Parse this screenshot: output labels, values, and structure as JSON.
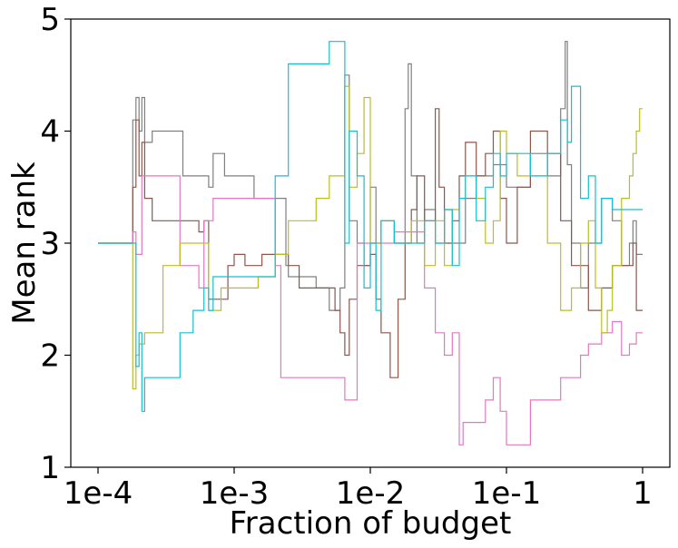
{
  "chart_data": {
    "type": "line",
    "title": "",
    "xlabel": "Fraction of budget",
    "ylabel": "Mean rank",
    "xscale": "log",
    "xlim": [
      0.0001,
      1
    ],
    "ylim": [
      1,
      5
    ],
    "xticks": [
      0.0001,
      0.001,
      0.01,
      0.1,
      1
    ],
    "xtick_labels": [
      "1e-4",
      "1e-3",
      "1e-2",
      "1e-1",
      "1"
    ],
    "yticks": [
      1,
      2,
      3,
      4,
      5
    ],
    "ytick_labels": [
      "1",
      "2",
      "3",
      "4",
      "5"
    ],
    "grid": false,
    "legend": "none",
    "series": [
      {
        "name": "gray",
        "color": "#7f7f7f",
        "points": [
          [
            0.0001,
            3.0
          ],
          [
            0.00017,
            3.0
          ],
          [
            0.00018,
            4.1
          ],
          [
            0.00019,
            4.3
          ],
          [
            0.0002,
            4.0
          ],
          [
            0.00021,
            4.3
          ],
          [
            0.00022,
            3.9
          ],
          [
            0.00025,
            4.0
          ],
          [
            0.0004,
            4.0
          ],
          [
            0.00042,
            3.6
          ],
          [
            0.0006,
            3.6
          ],
          [
            0.00065,
            3.5
          ],
          [
            0.0007,
            3.8
          ],
          [
            0.0008,
            3.8
          ],
          [
            0.00085,
            3.6
          ],
          [
            0.0012,
            3.6
          ],
          [
            0.0014,
            3.4
          ],
          [
            0.002,
            3.4
          ],
          [
            0.0024,
            2.8
          ],
          [
            0.0025,
            2.7
          ],
          [
            0.004,
            2.6
          ],
          [
            0.005,
            2.4
          ],
          [
            0.0055,
            2.4
          ],
          [
            0.006,
            2.6
          ],
          [
            0.0065,
            4.5
          ],
          [
            0.007,
            3.2
          ],
          [
            0.008,
            3.0
          ],
          [
            0.009,
            2.8
          ],
          [
            0.01,
            3.5
          ],
          [
            0.011,
            3.0
          ],
          [
            0.012,
            3.2
          ],
          [
            0.015,
            3.0
          ],
          [
            0.018,
            4.2
          ],
          [
            0.019,
            4.6
          ],
          [
            0.02,
            3.6
          ],
          [
            0.022,
            3.0
          ],
          [
            0.025,
            3.3
          ],
          [
            0.03,
            3.0
          ],
          [
            0.035,
            3.3
          ],
          [
            0.04,
            3.0
          ],
          [
            0.05,
            3.4
          ],
          [
            0.06,
            3.6
          ],
          [
            0.08,
            3.7
          ],
          [
            0.1,
            3.5
          ],
          [
            0.15,
            3.8
          ],
          [
            0.2,
            3.6
          ],
          [
            0.25,
            4.2
          ],
          [
            0.27,
            4.8
          ],
          [
            0.28,
            3.7
          ],
          [
            0.3,
            3.0
          ],
          [
            0.35,
            2.6
          ],
          [
            0.4,
            3.0
          ],
          [
            0.5,
            3.4
          ],
          [
            0.6,
            3.2
          ],
          [
            0.7,
            2.8
          ],
          [
            0.8,
            3.0
          ],
          [
            0.85,
            3.2
          ],
          [
            0.9,
            2.9
          ],
          [
            1.0,
            2.9
          ]
        ]
      },
      {
        "name": "brown",
        "color": "#8c564b",
        "points": [
          [
            0.0001,
            3.0
          ],
          [
            0.00017,
            3.0
          ],
          [
            0.00018,
            3.5
          ],
          [
            0.00019,
            4.1
          ],
          [
            0.0002,
            3.6
          ],
          [
            0.00021,
            3.9
          ],
          [
            0.00022,
            3.4
          ],
          [
            0.00025,
            3.2
          ],
          [
            0.0005,
            3.2
          ],
          [
            0.00055,
            3.1
          ],
          [
            0.0006,
            3.2
          ],
          [
            0.00065,
            2.5
          ],
          [
            0.0008,
            2.5
          ],
          [
            0.0009,
            2.8
          ],
          [
            0.001,
            2.9
          ],
          [
            0.0012,
            2.8
          ],
          [
            0.0015,
            2.8
          ],
          [
            0.0016,
            2.9
          ],
          [
            0.002,
            2.9
          ],
          [
            0.0025,
            2.8
          ],
          [
            0.003,
            2.6
          ],
          [
            0.005,
            2.6
          ],
          [
            0.0055,
            2.4
          ],
          [
            0.006,
            2.2
          ],
          [
            0.0065,
            2.0
          ],
          [
            0.007,
            2.5
          ],
          [
            0.008,
            2.8
          ],
          [
            0.01,
            2.9
          ],
          [
            0.011,
            2.5
          ],
          [
            0.012,
            2.2
          ],
          [
            0.014,
            1.8
          ],
          [
            0.016,
            2.5
          ],
          [
            0.018,
            3.0
          ],
          [
            0.02,
            3.3
          ],
          [
            0.022,
            3.6
          ],
          [
            0.025,
            3.2
          ],
          [
            0.03,
            4.2
          ],
          [
            0.032,
            3.5
          ],
          [
            0.035,
            3.0
          ],
          [
            0.04,
            3.2
          ],
          [
            0.045,
            3.6
          ],
          [
            0.05,
            3.9
          ],
          [
            0.06,
            3.6
          ],
          [
            0.07,
            3.8
          ],
          [
            0.08,
            4.0
          ],
          [
            0.09,
            3.4
          ],
          [
            0.1,
            3.0
          ],
          [
            0.12,
            3.5
          ],
          [
            0.15,
            4.0
          ],
          [
            0.2,
            3.8
          ],
          [
            0.25,
            3.2
          ],
          [
            0.3,
            2.8
          ],
          [
            0.4,
            2.4
          ],
          [
            0.5,
            2.6
          ],
          [
            0.6,
            2.8
          ],
          [
            0.8,
            2.8
          ],
          [
            0.85,
            3.0
          ],
          [
            0.9,
            2.4
          ],
          [
            1.0,
            2.4
          ]
        ]
      },
      {
        "name": "pink",
        "color": "#e377c2",
        "points": [
          [
            0.00017,
            3.0
          ],
          [
            0.00018,
            3.1
          ],
          [
            0.00019,
            2.9
          ],
          [
            0.00021,
            3.6
          ],
          [
            0.00035,
            3.6
          ],
          [
            0.0004,
            2.8
          ],
          [
            0.0005,
            2.8
          ],
          [
            0.00055,
            2.6
          ],
          [
            0.0006,
            3.2
          ],
          [
            0.0007,
            3.4
          ],
          [
            0.001,
            3.4
          ],
          [
            0.0012,
            3.4
          ],
          [
            0.0015,
            3.4
          ],
          [
            0.002,
            2.8
          ],
          [
            0.0022,
            1.8
          ],
          [
            0.004,
            1.8
          ],
          [
            0.006,
            1.8
          ],
          [
            0.0065,
            1.6
          ],
          [
            0.0075,
            1.6
          ],
          [
            0.008,
            3.0
          ],
          [
            0.01,
            3.0
          ],
          [
            0.015,
            3.1
          ],
          [
            0.02,
            3.1
          ],
          [
            0.025,
            2.6
          ],
          [
            0.03,
            2.2
          ],
          [
            0.035,
            2.0
          ],
          [
            0.04,
            2.2
          ],
          [
            0.045,
            1.2
          ],
          [
            0.048,
            1.4
          ],
          [
            0.06,
            1.4
          ],
          [
            0.07,
            1.6
          ],
          [
            0.08,
            1.8
          ],
          [
            0.09,
            1.5
          ],
          [
            0.1,
            1.2
          ],
          [
            0.12,
            1.2
          ],
          [
            0.15,
            1.6
          ],
          [
            0.2,
            1.6
          ],
          [
            0.25,
            1.8
          ],
          [
            0.3,
            1.8
          ],
          [
            0.35,
            2.0
          ],
          [
            0.4,
            2.1
          ],
          [
            0.5,
            2.2
          ],
          [
            0.6,
            2.3
          ],
          [
            0.7,
            2.0
          ],
          [
            0.8,
            2.1
          ],
          [
            0.9,
            2.2
          ],
          [
            1.0,
            2.2
          ]
        ]
      },
      {
        "name": "olive",
        "color": "#bcbd22",
        "points": [
          [
            0.0001,
            3.0
          ],
          [
            0.00017,
            3.0
          ],
          [
            0.00018,
            1.7
          ],
          [
            0.00019,
            2.0
          ],
          [
            0.0002,
            2.1
          ],
          [
            0.00022,
            2.2
          ],
          [
            0.0003,
            2.8
          ],
          [
            0.0004,
            3.0
          ],
          [
            0.0006,
            3.0
          ],
          [
            0.00065,
            2.4
          ],
          [
            0.0008,
            2.6
          ],
          [
            0.0015,
            2.7
          ],
          [
            0.002,
            2.9
          ],
          [
            0.0025,
            3.2
          ],
          [
            0.004,
            3.4
          ],
          [
            0.005,
            3.6
          ],
          [
            0.006,
            3.6
          ],
          [
            0.0065,
            4.4
          ],
          [
            0.007,
            3.5
          ],
          [
            0.008,
            3.8
          ],
          [
            0.009,
            4.3
          ],
          [
            0.01,
            3.0
          ],
          [
            0.012,
            3.2
          ],
          [
            0.015,
            3.0
          ],
          [
            0.02,
            3.2
          ],
          [
            0.025,
            2.8
          ],
          [
            0.03,
            3.2
          ],
          [
            0.035,
            2.8
          ],
          [
            0.04,
            3.3
          ],
          [
            0.045,
            3.4
          ],
          [
            0.05,
            3.6
          ],
          [
            0.06,
            3.4
          ],
          [
            0.07,
            3.0
          ],
          [
            0.08,
            3.2
          ],
          [
            0.09,
            4.0
          ],
          [
            0.1,
            3.8
          ],
          [
            0.12,
            3.6
          ],
          [
            0.15,
            3.6
          ],
          [
            0.2,
            3.0
          ],
          [
            0.25,
            2.4
          ],
          [
            0.3,
            2.6
          ],
          [
            0.35,
            3.0
          ],
          [
            0.4,
            3.2
          ],
          [
            0.45,
            2.6
          ],
          [
            0.5,
            2.2
          ],
          [
            0.55,
            2.4
          ],
          [
            0.6,
            2.8
          ],
          [
            0.7,
            3.4
          ],
          [
            0.8,
            3.6
          ],
          [
            0.85,
            3.8
          ],
          [
            0.9,
            4.0
          ],
          [
            0.95,
            4.2
          ],
          [
            1.0,
            4.2
          ]
        ]
      },
      {
        "name": "cyan",
        "color": "#17becf",
        "points": [
          [
            0.0001,
            3.0
          ],
          [
            0.00017,
            3.0
          ],
          [
            0.00019,
            1.9
          ],
          [
            0.0002,
            2.2
          ],
          [
            0.00021,
            1.5
          ],
          [
            0.00022,
            1.8
          ],
          [
            0.0003,
            1.8
          ],
          [
            0.0004,
            2.2
          ],
          [
            0.0005,
            2.4
          ],
          [
            0.0006,
            2.6
          ],
          [
            0.00065,
            2.4
          ],
          [
            0.0007,
            2.7
          ],
          [
            0.001,
            2.7
          ],
          [
            0.0015,
            2.7
          ],
          [
            0.002,
            3.6
          ],
          [
            0.0025,
            4.6
          ],
          [
            0.003,
            4.6
          ],
          [
            0.004,
            4.6
          ],
          [
            0.005,
            4.8
          ],
          [
            0.006,
            4.8
          ],
          [
            0.0065,
            3.0
          ],
          [
            0.007,
            4.0
          ],
          [
            0.008,
            3.6
          ],
          [
            0.009,
            2.6
          ],
          [
            0.01,
            3.0
          ],
          [
            0.011,
            2.4
          ],
          [
            0.012,
            3.2
          ],
          [
            0.015,
            3.0
          ],
          [
            0.02,
            3.0
          ],
          [
            0.025,
            3.2
          ],
          [
            0.03,
            3.0
          ],
          [
            0.035,
            3.3
          ],
          [
            0.04,
            2.8
          ],
          [
            0.045,
            3.4
          ],
          [
            0.05,
            3.6
          ],
          [
            0.06,
            3.2
          ],
          [
            0.07,
            3.5
          ],
          [
            0.08,
            3.8
          ],
          [
            0.09,
            3.6
          ],
          [
            0.1,
            3.8
          ],
          [
            0.15,
            3.6
          ],
          [
            0.2,
            3.8
          ],
          [
            0.25,
            4.1
          ],
          [
            0.28,
            3.9
          ],
          [
            0.3,
            4.4
          ],
          [
            0.35,
            3.4
          ],
          [
            0.4,
            3.6
          ],
          [
            0.45,
            3.0
          ],
          [
            0.5,
            3.4
          ],
          [
            0.6,
            3.3
          ],
          [
            0.8,
            3.3
          ],
          [
            0.9,
            3.3
          ],
          [
            1.0,
            3.3
          ]
        ]
      }
    ]
  }
}
